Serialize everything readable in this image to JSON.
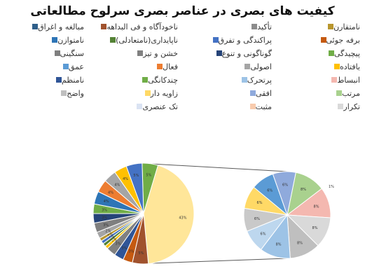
{
  "chart_data": {
    "type": "pie",
    "title": "کیفیت های بصری در عناصر بصری سرلوح مطالعاتی",
    "series": [
      {
        "name": "نامتقارن",
        "color": "#b8962e",
        "value": 0
      },
      {
        "name": "تأکید",
        "color": "#8c8c8c",
        "value": 0
      },
      {
        "name": "ناخودآگاه و فی البداهه",
        "color": "#a0522d",
        "value": 2
      },
      {
        "name": "مبالغه و اغراق",
        "color": "#2f5f8a",
        "value": 0
      },
      {
        "name": "برفه جوئی",
        "color": "#c55a11",
        "value": 0
      },
      {
        "name": "پراکندگی و تفرق",
        "color": "#4472c4",
        "value": 0
      },
      {
        "name": "ناپایداری(نامتعادلی)",
        "color": "#548235",
        "value": 0
      },
      {
        "name": "نامتوازن",
        "color": "#2e75b6",
        "value": 0
      },
      {
        "name": "پیچیدگی",
        "color": "#70ad47",
        "value": 3
      },
      {
        "name": "گوناگونی و تنوع",
        "color": "#264478",
        "value": 2
      },
      {
        "name": "خشن و تیز",
        "color": "#808080",
        "value": 3
      },
      {
        "name": "سنگینی",
        "color": "#7f7f7f",
        "value": 3
      },
      {
        "name": "یافتاده",
        "color": "#ffc000",
        "value": 4
      },
      {
        "name": "اصولی",
        "color": "#a5a5a5",
        "value": 4
      },
      {
        "name": "فعال",
        "color": "#ed7d31",
        "value": 4
      },
      {
        "name": "عمق",
        "color": "#5b9bd5",
        "value": 3
      },
      {
        "name": "انبساط",
        "color": "#f4b8b0",
        "value": 0
      },
      {
        "name": "پرتحرک",
        "color": "#9dc3e6",
        "value": 0
      },
      {
        "name": "چندکانگی",
        "color": "#70ad47",
        "value": 0
      },
      {
        "name": "نامنظم",
        "color": "#2f5597",
        "value": 0
      },
      {
        "name": "مرتب",
        "color": "#a9d18e",
        "value": 0
      },
      {
        "name": "افقی",
        "color": "#8faadc",
        "value": 0
      },
      {
        "name": "زاویه دار",
        "color": "#ffd966",
        "value": 0
      },
      {
        "name": "واضح",
        "color": "#bfbfbf",
        "value": 0
      },
      {
        "name": "تکرار",
        "color": "#d9d9d9",
        "value": 0
      },
      {
        "name": "مثبت",
        "color": "#f8cbad",
        "value": 0
      },
      {
        "name": "تک عنصری",
        "color": "#dae3f3",
        "value": 0
      }
    ],
    "main_pie": [
      {
        "label": "5%",
        "value": 5,
        "color": "#70ad47"
      },
      {
        "label": "43%",
        "value": 43,
        "color": "#ffe699"
      },
      {
        "label": "5%",
        "value": 5,
        "color": "#a0522d"
      },
      {
        "label": "3%",
        "value": 3,
        "color": "#c55a11"
      },
      {
        "label": "3%",
        "value": 3,
        "color": "#2f5597"
      },
      {
        "label": "3%",
        "value": 3,
        "color": "#808080"
      },
      {
        "label": "1%",
        "value": 1,
        "color": "#ffc000"
      },
      {
        "label": "1%",
        "value": 1,
        "color": "#548235"
      },
      {
        "label": "1%",
        "value": 1,
        "color": "#4472c4"
      },
      {
        "label": "1%",
        "value": 1,
        "color": "#b8962e"
      },
      {
        "label": "2%",
        "value": 2,
        "color": "#a5a5a5"
      },
      {
        "label": "3%",
        "value": 3,
        "color": "#7f7f7f"
      },
      {
        "label": "3%",
        "value": 3,
        "color": "#264478"
      },
      {
        "label": "3%",
        "value": 3,
        "color": "#70ad47"
      },
      {
        "label": "4%",
        "value": 4,
        "color": "#2e75b6"
      },
      {
        "label": "4%",
        "value": 4,
        "color": "#ed7d31"
      },
      {
        "label": "4%",
        "value": 4,
        "color": "#a5a5a5"
      },
      {
        "label": "4%",
        "value": 4,
        "color": "#ffc000"
      },
      {
        "label": "5%",
        "value": 5,
        "color": "#4472c4"
      }
    ],
    "secondary_pie": [
      {
        "label": "8%",
        "value": 8,
        "color": "#a9d18e"
      },
      {
        "label": "8%",
        "value": 8,
        "color": "#f4b8b0"
      },
      {
        "label": "8%",
        "value": 8,
        "color": "#d9d9d9"
      },
      {
        "label": "8%",
        "value": 8,
        "color": "#bfbfbf"
      },
      {
        "label": "8%",
        "value": 8,
        "color": "#9dc3e6"
      },
      {
        "label": "6%",
        "value": 6,
        "color": "#bdd7ee"
      },
      {
        "label": "6%",
        "value": 6,
        "color": "#c9c9c9"
      },
      {
        "label": "6%",
        "value": 6,
        "color": "#ffd966"
      },
      {
        "label": "6%",
        "value": 6,
        "color": "#5b9bd5"
      },
      {
        "label": "6%",
        "value": 6,
        "color": "#8faadc"
      }
    ],
    "outside_label": "1%"
  }
}
